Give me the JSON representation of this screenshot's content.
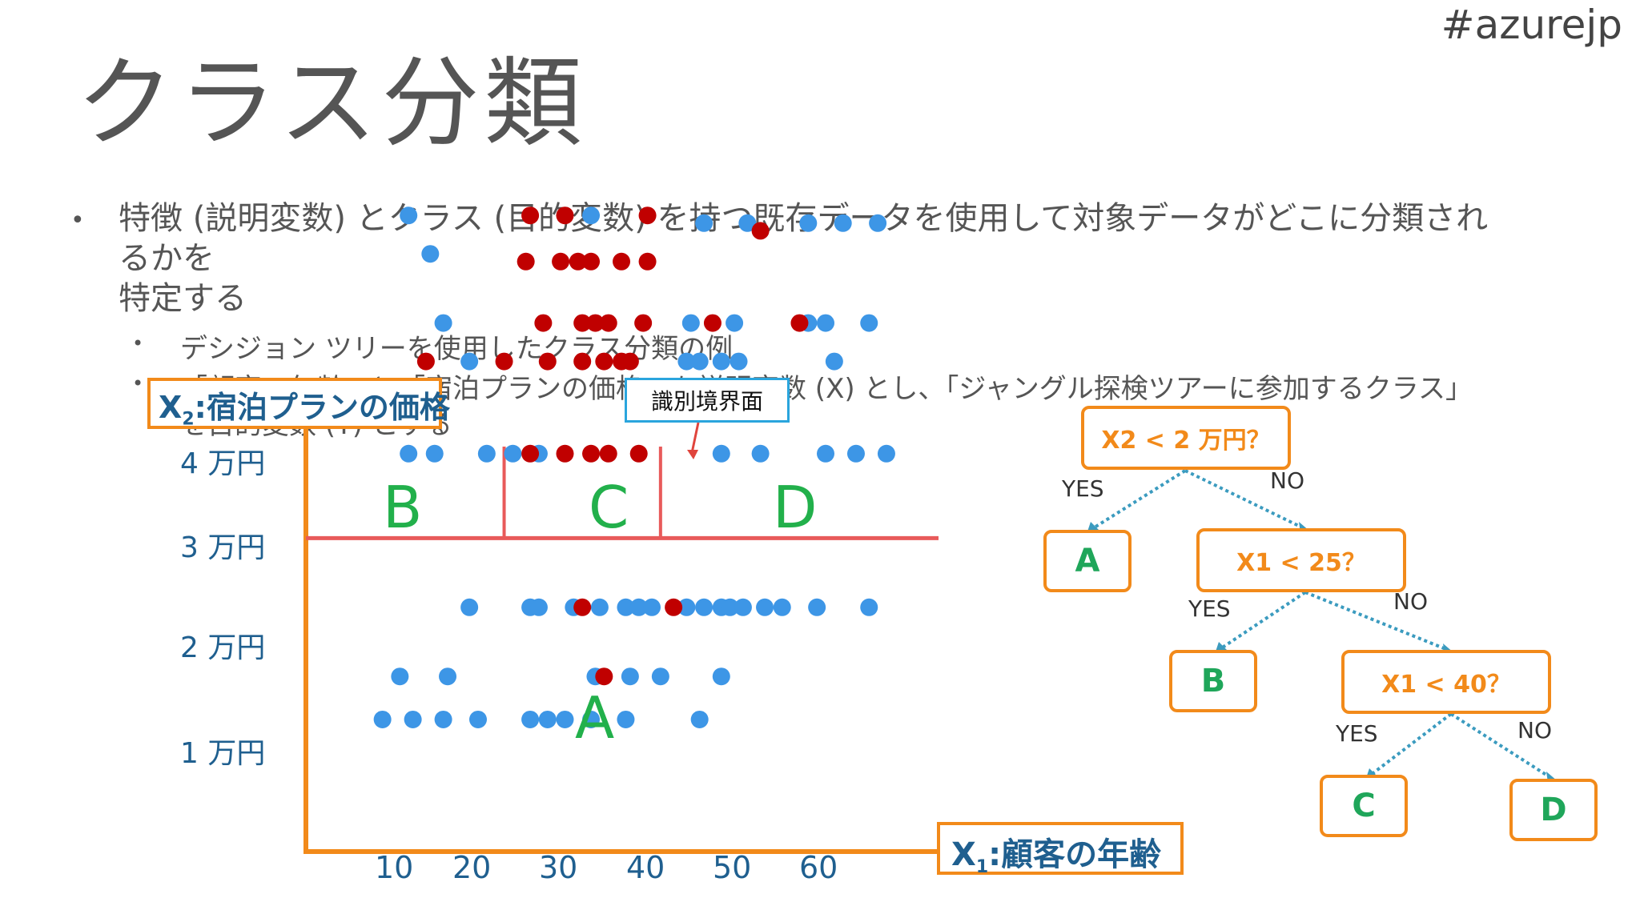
{
  "hashtag": "#azurejp",
  "title": "クラス分類",
  "bullet1_line1": "特徴 (説明変数) とクラス (目的変数) を持つ既存データを使用して対象データがどこに分類され",
  "bullet1_line2": "るかを",
  "bullet1_line3": "特定する",
  "sub_bullet1": "デシジョン ツリーを使用したクラス分類の例",
  "sub_bullet2": "「顧客の年齢」と「宿泊プランの価格」を説明変数 (X) とし、「ジャングル探検ツアーに参加するクラス」",
  "sub_bullet2_tail": "を目的変数 (Y) とする",
  "bullet_glyph": "•",
  "decision_boundary_label": "識別境界面",
  "y_axis_title_var": "X",
  "y_axis_title_sub": "2",
  "y_axis_title_rest": ":宿泊プランの価格",
  "x_axis_title_var": "X",
  "x_axis_title_sub": "1",
  "x_axis_title_rest": ":顧客の年齢",
  "colors": {
    "blue": "#3d96e6",
    "red": "#c00000",
    "orange": "#f28a1a",
    "green": "#22b04b",
    "line": "#e85a5a"
  },
  "chart_data": {
    "type": "scatter",
    "xlabel": "X1:顧客の年齢",
    "ylabel": "X2:宿泊プランの価格",
    "x_ticks": [
      "10",
      "20",
      "30",
      "40",
      "50",
      "60"
    ],
    "y_ticks": [
      "1 万円",
      "2 万円",
      "3 万円",
      "4 万円"
    ],
    "regions": [
      "A",
      "B",
      "C",
      "D"
    ],
    "boundaries": {
      "horizontal_y": 2.05,
      "vertical_x": [
        28,
        46
      ]
    },
    "series": [
      {
        "class": "blue",
        "points": [
          [
            17,
            4.15
          ],
          [
            19.5,
            3.9
          ],
          [
            38,
            4.15
          ],
          [
            51,
            4.1
          ],
          [
            56,
            4.1
          ],
          [
            63,
            4.1
          ],
          [
            67,
            4.1
          ],
          [
            71,
            4.1
          ],
          [
            21,
            3.45
          ],
          [
            49.5,
            3.45
          ],
          [
            54.5,
            3.45
          ],
          [
            63,
            3.45
          ],
          [
            65,
            3.45
          ],
          [
            70,
            3.45
          ],
          [
            24,
            3.2
          ],
          [
            49,
            3.2
          ],
          [
            50.5,
            3.2
          ],
          [
            53,
            3.2
          ],
          [
            55,
            3.2
          ],
          [
            66,
            3.2
          ],
          [
            17,
            2.6
          ],
          [
            20,
            2.6
          ],
          [
            26,
            2.6
          ],
          [
            29,
            2.6
          ],
          [
            32,
            2.6
          ],
          [
            53,
            2.6
          ],
          [
            57.5,
            2.6
          ],
          [
            65,
            2.6
          ],
          [
            68.5,
            2.6
          ],
          [
            72,
            2.6
          ],
          [
            24,
            1.6
          ],
          [
            31,
            1.6
          ],
          [
            32,
            1.6
          ],
          [
            36,
            1.6
          ],
          [
            39,
            1.6
          ],
          [
            42,
            1.6
          ],
          [
            43.5,
            1.6
          ],
          [
            45,
            1.6
          ],
          [
            49,
            1.6
          ],
          [
            51,
            1.6
          ],
          [
            53,
            1.6
          ],
          [
            54,
            1.6
          ],
          [
            55.5,
            1.6
          ],
          [
            58,
            1.6
          ],
          [
            60,
            1.6
          ],
          [
            64,
            1.6
          ],
          [
            70,
            1.6
          ],
          [
            16,
            1.15
          ],
          [
            21.5,
            1.15
          ],
          [
            38.5,
            1.15
          ],
          [
            42.5,
            1.15
          ],
          [
            46,
            1.15
          ],
          [
            53,
            1.15
          ],
          [
            14,
            0.87
          ],
          [
            17.5,
            0.87
          ],
          [
            21,
            0.87
          ],
          [
            25,
            0.87
          ],
          [
            31,
            0.87
          ],
          [
            33,
            0.87
          ],
          [
            35,
            0.87
          ],
          [
            38,
            0.87
          ],
          [
            42,
            0.87
          ],
          [
            50.5,
            0.87
          ]
        ]
      },
      {
        "class": "red",
        "points": [
          [
            31,
            4.15
          ],
          [
            35,
            4.15
          ],
          [
            44.5,
            4.15
          ],
          [
            57.5,
            4.05
          ],
          [
            30.5,
            3.85
          ],
          [
            34.5,
            3.85
          ],
          [
            36.5,
            3.85
          ],
          [
            38,
            3.85
          ],
          [
            41.5,
            3.85
          ],
          [
            44.5,
            3.85
          ],
          [
            32.5,
            3.45
          ],
          [
            37,
            3.45
          ],
          [
            38.5,
            3.45
          ],
          [
            40,
            3.45
          ],
          [
            44,
            3.45
          ],
          [
            52,
            3.45
          ],
          [
            62,
            3.45
          ],
          [
            19,
            3.2
          ],
          [
            28,
            3.2
          ],
          [
            33,
            3.2
          ],
          [
            37,
            3.2
          ],
          [
            39.5,
            3.2
          ],
          [
            41.5,
            3.2
          ],
          [
            42.5,
            3.2
          ],
          [
            31,
            2.6
          ],
          [
            35,
            2.6
          ],
          [
            38,
            2.6
          ],
          [
            40,
            2.6
          ],
          [
            43.5,
            2.6
          ],
          [
            37,
            1.6
          ],
          [
            47.5,
            1.6
          ],
          [
            39.5,
            1.15
          ]
        ]
      }
    ],
    "tree": {
      "root": "X2 < 2 万円？",
      "n2": "X1 < 25？",
      "n3": "X1 < 40？",
      "leaves": [
        "A",
        "B",
        "C",
        "D"
      ],
      "yes": "YES",
      "no": "NO"
    }
  }
}
